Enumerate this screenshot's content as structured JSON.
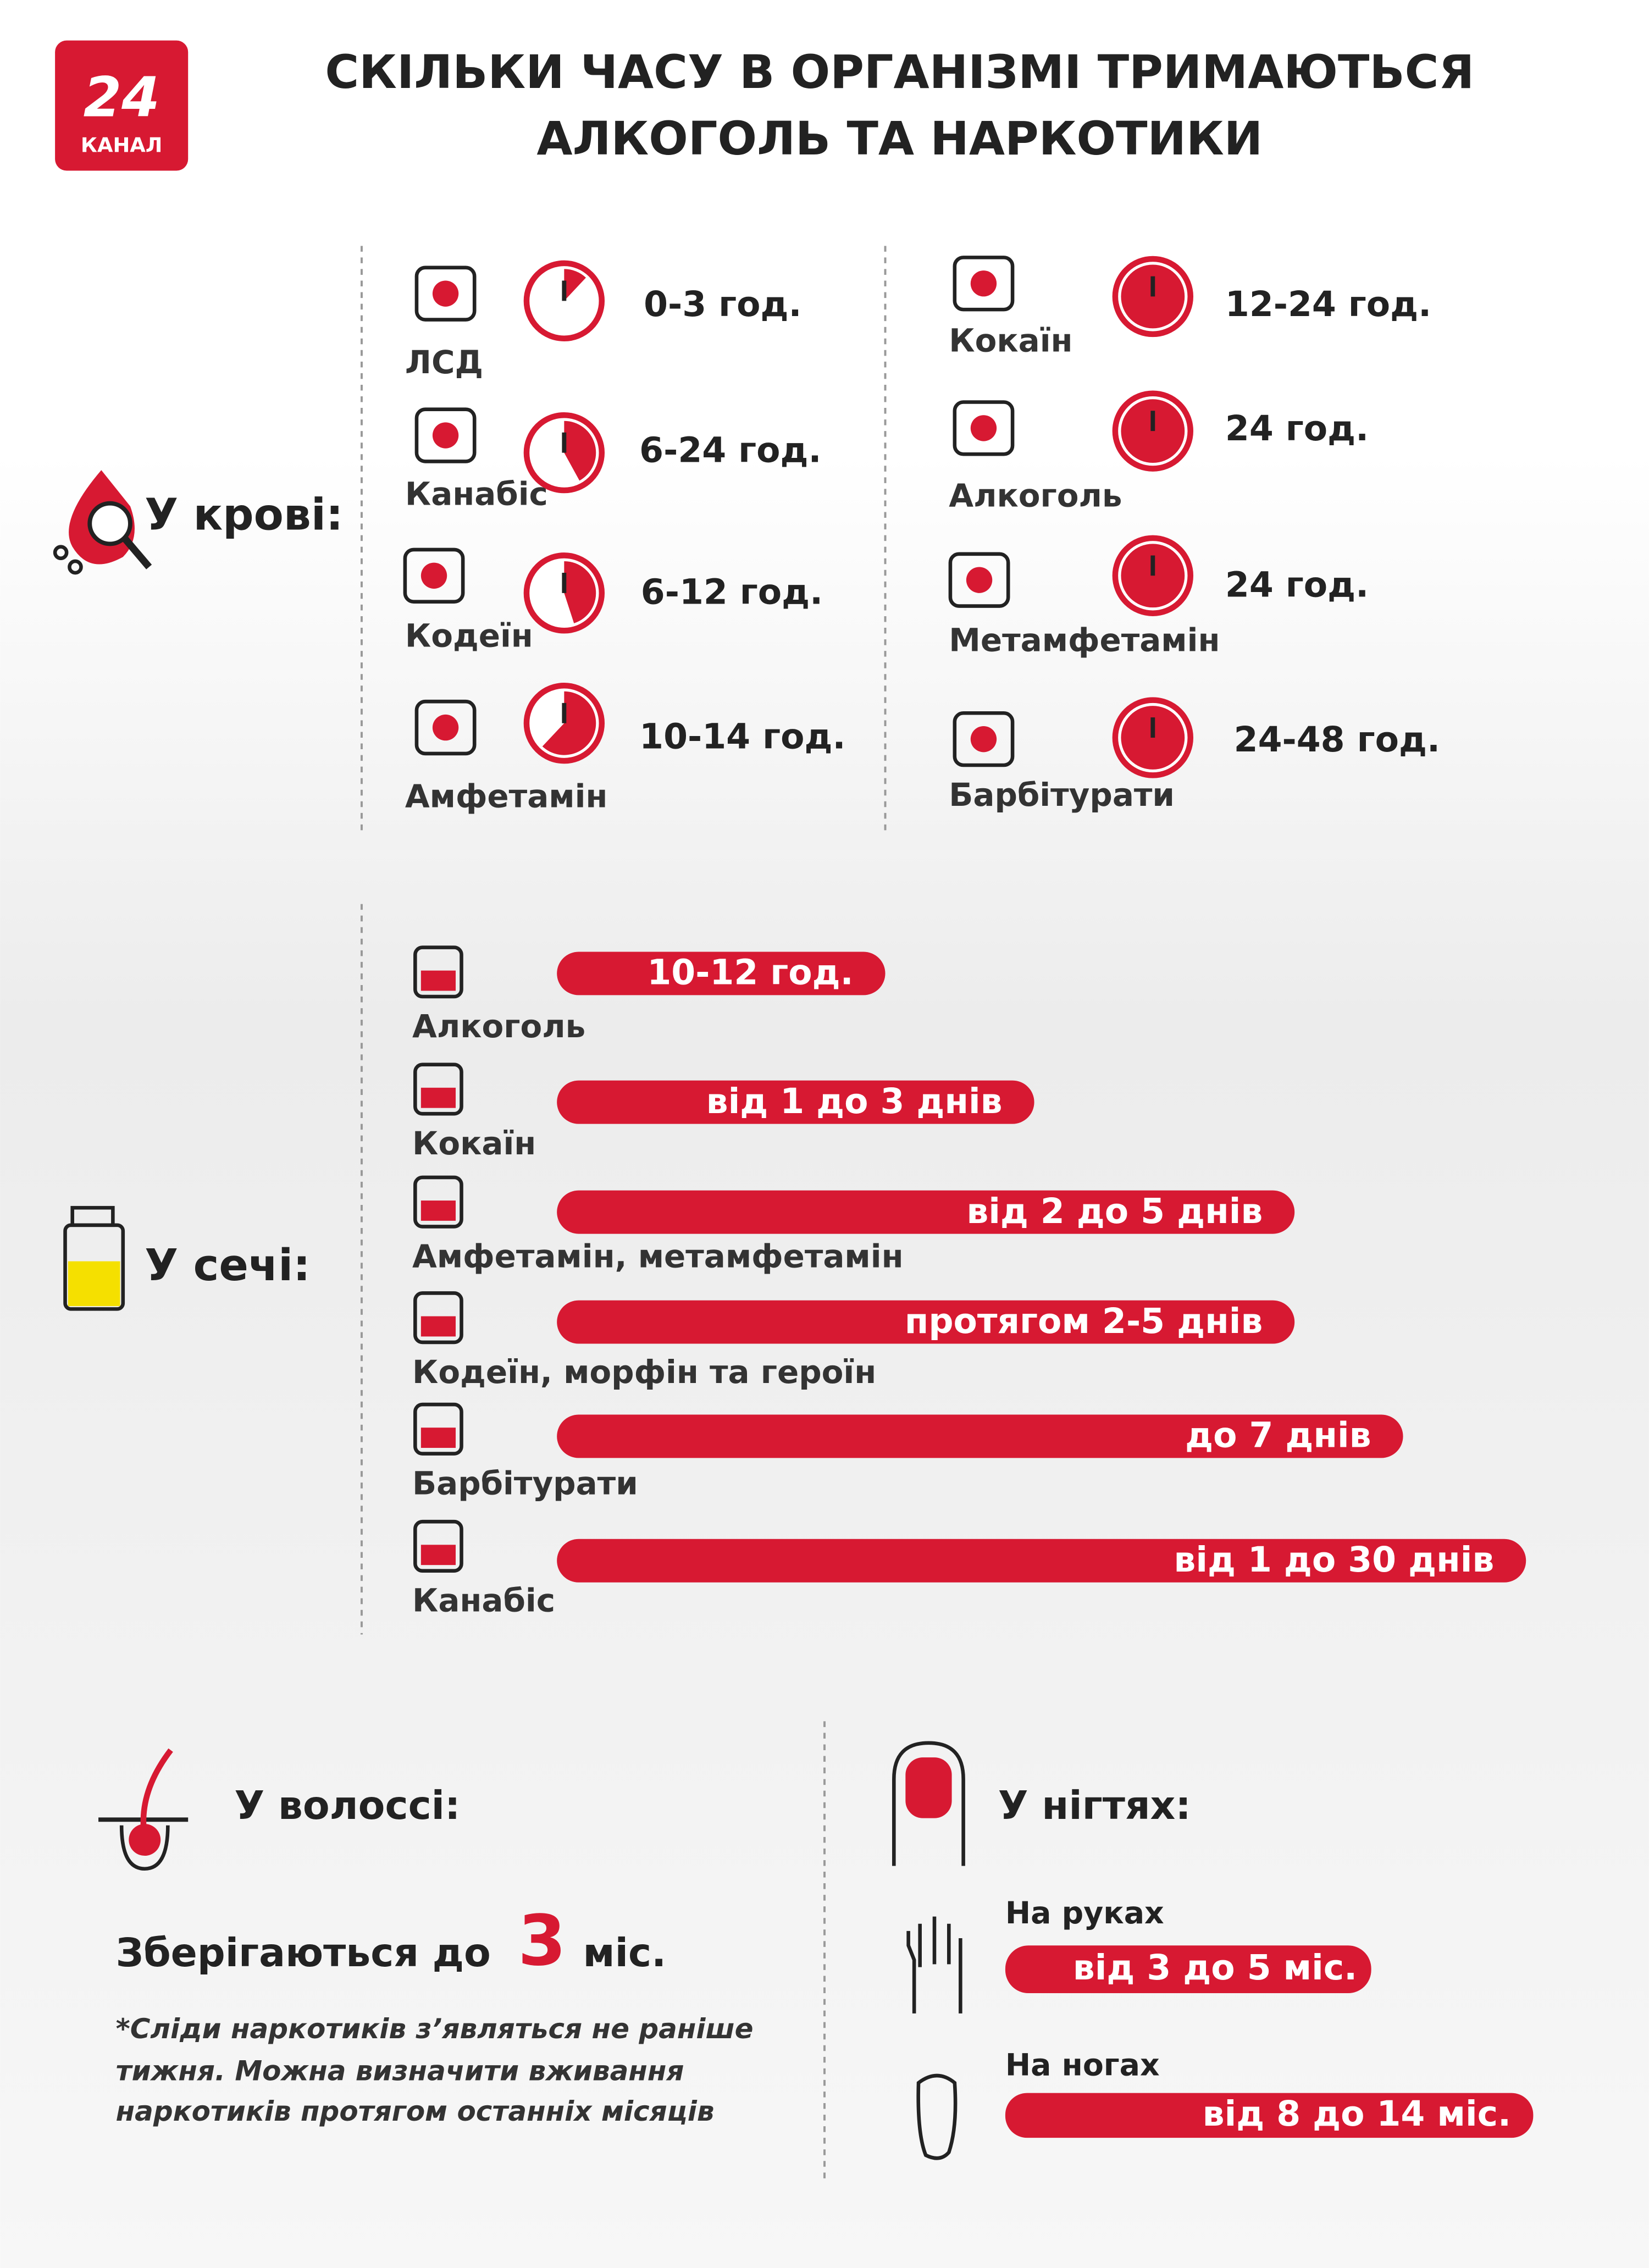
{
  "header": {
    "logo_number": "24",
    "logo_text": "КАНАЛ",
    "title_lines": [
      "СКІЛЬКИ ЧАСУ В ОРГАНІЗМІ ТРИМАЮТЬСЯ",
      "АЛКОГОЛЬ ТА НАРКОТИКИ"
    ]
  },
  "blood": {
    "label": "У крові:",
    "items": [
      {
        "name": "ЛСД",
        "time": "0-3 год."
      },
      {
        "name": "Канабіс",
        "time": "6-24 год."
      },
      {
        "name": "Кодеїн",
        "time": "6-12 год."
      },
      {
        "name": "Амфетамін",
        "time": "10-14 год."
      },
      {
        "name": "Кокаїн",
        "time": "12-24 год."
      },
      {
        "name": "Алкоголь",
        "time": "24 год."
      },
      {
        "name": "Метамфетамін",
        "time": "24 год."
      },
      {
        "name": "Барбітурати",
        "time": "24-48 год."
      }
    ]
  },
  "urine": {
    "label": "У сечі:",
    "items": [
      {
        "name": "Алкоголь",
        "time": "10-12 год."
      },
      {
        "name": "Кокаїн",
        "time": "від 1 до 3 днів"
      },
      {
        "name": "Амфетамін, метамфетамін",
        "time": "від 2 до 5 днів"
      },
      {
        "name": "Кодеїн, морфін та героїн",
        "time": "протягом 2-5 днів"
      },
      {
        "name": "Барбітурати",
        "time": "до 7 днів"
      },
      {
        "name": "Канабіс",
        "time": "від 1 до 30 днів"
      }
    ]
  },
  "hair": {
    "label": "У волоссі:",
    "stored_prefix": "Зберігаються до",
    "number": "3",
    "unit": "міс.",
    "note_lines": [
      "*Сліди наркотиків з’являться не раніше",
      "тижня. Можна визначити вживання",
      "наркотиків протягом останніх місяців"
    ]
  },
  "nails": {
    "label": "У нігтях:",
    "hands": {
      "label": "На руках",
      "time": "від 3 до 5 міс."
    },
    "feet": {
      "label": "На ногах",
      "time": "від 8 до 14 міс."
    }
  }
}
